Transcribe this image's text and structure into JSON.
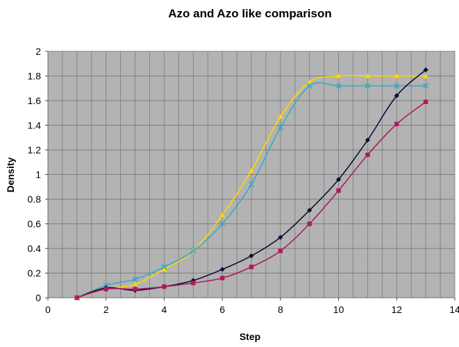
{
  "chart_data": {
    "type": "line",
    "title": "Azo and Azo like comparison",
    "xlabel": "Step",
    "ylabel": "Density",
    "xlim": [
      0,
      14
    ],
    "ylim": [
      0,
      2
    ],
    "x_ticks": [
      0,
      2,
      4,
      6,
      8,
      10,
      12,
      14
    ],
    "y_ticks": [
      0,
      0.2,
      0.4,
      0.6,
      0.8,
      1,
      1.2,
      1.4,
      1.6,
      1.8,
      2
    ],
    "x_tick_labels": [
      "0",
      "2",
      "4",
      "6",
      "8",
      "10",
      "12",
      "14"
    ],
    "y_tick_labels": [
      "0",
      "0.2",
      "0.4",
      "0.6",
      "0.8",
      "1",
      "1.2",
      "1.4",
      "1.6",
      "1.8",
      "2"
    ],
    "x_minor_grid_step": 0.5,
    "grid": true,
    "legend": "none",
    "plot_background": "#b3b3b3",
    "series": [
      {
        "color": "#ffd700",
        "marker": "triangle",
        "x": [
          1,
          2,
          3,
          4,
          5,
          6,
          7,
          8,
          9,
          10,
          11,
          12,
          13
        ],
        "y": [
          0.0,
          0.07,
          0.11,
          0.23,
          0.38,
          0.67,
          1.03,
          1.47,
          1.75,
          1.8,
          1.8,
          1.8,
          1.8
        ]
      },
      {
        "color": "#3aa8c8",
        "marker": "x",
        "x": [
          1,
          2,
          3,
          4,
          5,
          6,
          7,
          8,
          9,
          10,
          11,
          12,
          13
        ],
        "y": [
          0.0,
          0.1,
          0.15,
          0.25,
          0.38,
          0.6,
          0.92,
          1.38,
          1.72,
          1.72,
          1.72,
          1.72,
          1.72
        ]
      },
      {
        "color": "#0c0c3a",
        "marker": "diamond",
        "x": [
          1,
          2,
          3,
          4,
          5,
          6,
          7,
          8,
          9,
          10,
          11,
          12,
          13
        ],
        "y": [
          0.0,
          0.08,
          0.06,
          0.09,
          0.14,
          0.23,
          0.34,
          0.49,
          0.71,
          0.96,
          1.28,
          1.64,
          1.85
        ]
      },
      {
        "color": "#b0195e",
        "marker": "square",
        "x": [
          1,
          2,
          3,
          4,
          5,
          6,
          7,
          8,
          9,
          10,
          11,
          12,
          13
        ],
        "y": [
          0.0,
          0.07,
          0.07,
          0.09,
          0.12,
          0.16,
          0.25,
          0.38,
          0.6,
          0.87,
          1.16,
          1.41,
          1.59
        ]
      }
    ]
  }
}
